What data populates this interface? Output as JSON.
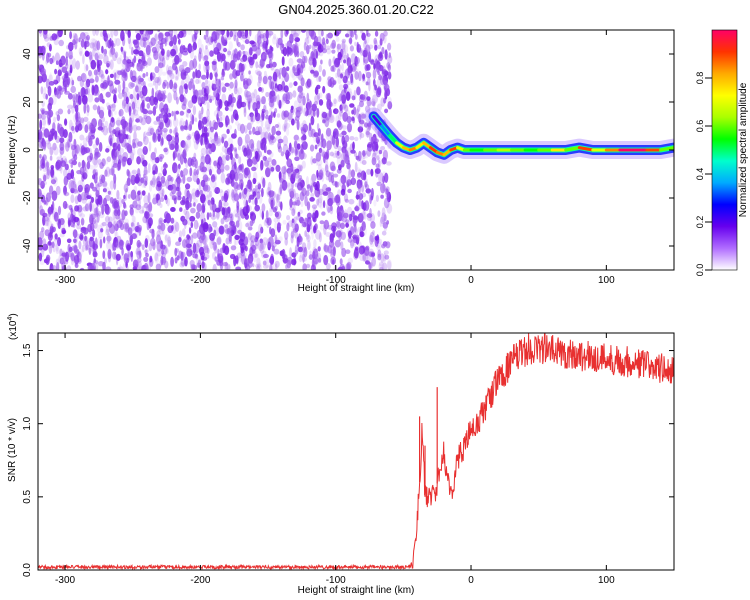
{
  "figure": {
    "title": "GN04.2025.360.01.20.C22"
  },
  "chart_data": [
    {
      "type": "heatmap",
      "title": "GN04.2025.360.01.20.C22",
      "xlabel": "Height of straight line (km)",
      "ylabel": "Frequency (Hz)",
      "xlim": [
        -320,
        150
      ],
      "ylim": [
        -50,
        50
      ],
      "x_ticks": [
        -300,
        -200,
        -100,
        0,
        100
      ],
      "x_tick_labels": [
        "-300",
        "-200",
        "-100",
        "0",
        "100"
      ],
      "y_ticks": [
        -40,
        -20,
        0,
        20,
        40
      ],
      "y_tick_labels": [
        "-40",
        "-20",
        "0",
        "20",
        "40"
      ],
      "noise_region": {
        "x_range": [
          -320,
          -60
        ],
        "y_range": [
          -50,
          50
        ],
        "color": "#7a1fe6"
      },
      "ridge": {
        "x": [
          -72,
          -66,
          -60,
          -55,
          -50,
          -45,
          -40,
          -35,
          -30,
          -25,
          -20,
          -15,
          -10,
          -5,
          0,
          10,
          20,
          30,
          40,
          50,
          60,
          70,
          80,
          90,
          100,
          110,
          120,
          130,
          140,
          150
        ],
        "y": [
          14,
          10,
          6,
          3,
          1,
          0,
          1,
          3,
          1,
          -1,
          -2,
          0,
          1,
          0,
          0,
          0,
          0,
          0,
          0,
          0,
          0,
          0,
          1,
          0,
          0,
          0,
          0,
          0,
          0,
          1
        ],
        "amplitude": [
          0.2,
          0.35,
          0.5,
          0.7,
          0.8,
          0.85,
          0.75,
          0.8,
          0.9,
          0.85,
          0.8,
          0.9,
          0.7,
          0.6,
          0.55,
          0.6,
          0.65,
          0.6,
          0.55,
          0.6,
          0.75,
          0.6,
          0.9,
          0.7,
          0.85,
          1.0,
          1.0,
          0.9,
          0.6,
          0.5
        ]
      },
      "colorbar": {
        "label": "Normalized spectral amplitude",
        "range": [
          0,
          1
        ],
        "ticks": [
          0.0,
          0.2,
          0.4,
          0.6,
          0.8
        ],
        "tick_labels": [
          "0.0",
          "0.2",
          "0.4",
          "0.6",
          "0.8"
        ],
        "colormap": [
          "#ffffff",
          "#b06cff",
          "#6600ee",
          "#0000ff",
          "#00aaff",
          "#00ffcc",
          "#00ff00",
          "#aaff00",
          "#ffff00",
          "#ffaa00",
          "#ff3300",
          "#ff0066"
        ]
      }
    },
    {
      "type": "line",
      "xlabel": "Height of straight line (km)",
      "ylabel": "SNR (10 * v/v)",
      "y_multiplier_label": "(x10",
      "y_multiplier_exp": "4",
      "y_multiplier_close": ")",
      "xlim": [
        -320,
        150
      ],
      "ylim": [
        0,
        1.62
      ],
      "x_ticks": [
        -300,
        -200,
        -100,
        0,
        100
      ],
      "x_tick_labels": [
        "-300",
        "-200",
        "-100",
        "0",
        "100"
      ],
      "y_ticks": [
        0.0,
        0.5,
        1.0,
        1.5
      ],
      "y_tick_labels": [
        "0.0",
        "0.5",
        "1.0",
        "1.5"
      ],
      "series": [
        {
          "color": "#e83030",
          "x": [
            -320,
            -200,
            -100,
            -45,
            -42,
            -40,
            -38,
            -36,
            -34,
            -30,
            -26,
            -20,
            -15,
            -10,
            -5,
            0,
            5,
            10,
            20,
            30,
            40,
            50,
            60,
            70,
            80,
            90,
            100,
            110,
            120,
            130,
            140,
            150
          ],
          "y": [
            0.02,
            0.02,
            0.02,
            0.02,
            0.1,
            0.3,
            0.6,
            1.0,
            0.5,
            0.5,
            0.55,
            0.8,
            0.5,
            0.75,
            0.85,
            0.95,
            1.0,
            1.1,
            1.3,
            1.42,
            1.5,
            1.52,
            1.5,
            1.48,
            1.47,
            1.45,
            1.45,
            1.43,
            1.42,
            1.4,
            1.38,
            1.35
          ],
          "spikes": {
            "x": [
              -38,
              -34,
              -25
            ],
            "y": [
              1.05,
              0.85,
              1.25
            ]
          }
        }
      ]
    }
  ]
}
